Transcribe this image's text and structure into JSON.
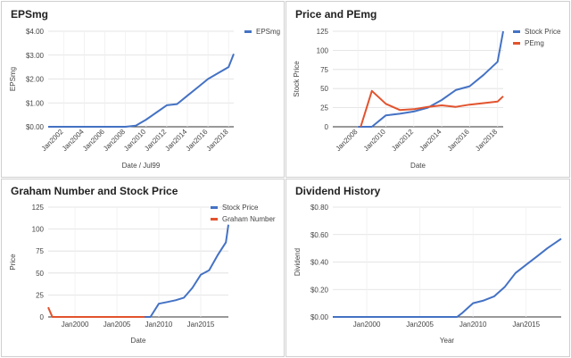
{
  "chart_data": [
    {
      "type": "line",
      "title": "EPSmg",
      "xlabel": "Date / Jul99",
      "ylabel": "EPSmg",
      "x_ticks": [
        "Jan2002",
        "Jan2004",
        "Jan2006",
        "Jan2008",
        "Jan2010",
        "Jan2012",
        "Jan2014",
        "Jan2016",
        "Jan2018"
      ],
      "xlim": [
        2000.5,
        2018.5
      ],
      "ylim": [
        0,
        4
      ],
      "y_ticks": [
        0,
        1,
        2,
        3,
        4
      ],
      "y_tick_labels": [
        "$0.00",
        "$1.00",
        "$2.00",
        "$3.00",
        "$4.00"
      ],
      "x_ticks_rotated": true,
      "legend": "top-right",
      "series": [
        {
          "name": "EPSmg",
          "color": "#4472c4",
          "x": [
            2000.5,
            2002,
            2004,
            2006,
            2008,
            2009,
            2010,
            2011,
            2012,
            2013,
            2014,
            2015,
            2016,
            2017,
            2018,
            2018.5
          ],
          "y": [
            0,
            0,
            0,
            0,
            0,
            0.05,
            0.3,
            0.6,
            0.9,
            0.95,
            1.3,
            1.65,
            2.0,
            2.25,
            2.5,
            3.05
          ]
        }
      ]
    },
    {
      "type": "line",
      "title": "Price and PEmg",
      "xlabel": "Date",
      "ylabel": "Stock Price",
      "x_ticks": [
        "Jan2008",
        "Jan2010",
        "Jan2012",
        "Jan2014",
        "Jan2016",
        "Jan2018"
      ],
      "xlim": [
        2006.2,
        2018.4
      ],
      "ylim": [
        0,
        125
      ],
      "y_ticks": [
        0,
        25,
        50,
        75,
        100,
        125
      ],
      "y_tick_labels": [
        "0",
        "25",
        "50",
        "75",
        "100",
        "125"
      ],
      "x_ticks_rotated": true,
      "legend": "top-right",
      "series": [
        {
          "name": "Stock Price",
          "color": "#4472c4",
          "x": [
            2008,
            2009,
            2010,
            2011,
            2012,
            2013,
            2014,
            2015,
            2016,
            2017,
            2018,
            2018.4
          ],
          "y": [
            0,
            0,
            15,
            17,
            20,
            25,
            35,
            48,
            53,
            68,
            85,
            125
          ]
        },
        {
          "name": "PEmg",
          "color": "#e2532d",
          "x": [
            2008.2,
            2009,
            2010,
            2011,
            2012,
            2013,
            2014,
            2015,
            2016,
            2017,
            2018,
            2018.4
          ],
          "y": [
            0,
            47,
            30,
            22,
            23,
            26,
            28,
            26,
            29,
            31,
            33,
            40
          ]
        }
      ]
    },
    {
      "type": "line",
      "title": "Graham Number and Stock Price",
      "xlabel": "Date",
      "ylabel": "Price",
      "x_ticks": [
        "Jan2000",
        "Jan2005",
        "Jan2010",
        "Jan2015"
      ],
      "xlim": [
        1996.8,
        2018.3
      ],
      "ylim": [
        0,
        125
      ],
      "y_ticks": [
        0,
        25,
        50,
        75,
        100,
        125
      ],
      "y_tick_labels": [
        "0",
        "25",
        "50",
        "75",
        "100",
        "125"
      ],
      "x_ticks_rotated": false,
      "legend": "top-right",
      "series": [
        {
          "name": "Stock Price",
          "color": "#4472c4",
          "x": [
            2007.6,
            2008.5,
            2009,
            2010,
            2011,
            2012,
            2013,
            2014,
            2015,
            2016,
            2017,
            2018,
            2018.3
          ],
          "y": [
            0,
            0,
            0,
            15,
            17,
            19,
            22,
            33,
            48,
            53,
            70,
            85,
            105
          ]
        },
        {
          "name": "Graham Number",
          "color": "#e2532d",
          "x": [
            1996.8,
            1997.3,
            2000,
            2005,
            2008.3
          ],
          "y": [
            11,
            0,
            0,
            0,
            0
          ]
        }
      ]
    },
    {
      "type": "line",
      "title": "Dividend History",
      "xlabel": "Year",
      "ylabel": "Dividend",
      "x_ticks": [
        "Jan2000",
        "Jan2005",
        "Jan2010",
        "Jan2015"
      ],
      "xlim": [
        1996.8,
        2018.3
      ],
      "ylim": [
        0,
        0.8
      ],
      "y_ticks": [
        0,
        0.2,
        0.4,
        0.6,
        0.8
      ],
      "y_tick_labels": [
        "$0.00",
        "$0.20",
        "$0.40",
        "$0.60",
        "$0.80"
      ],
      "x_ticks_rotated": false,
      "legend": "none",
      "series": [
        {
          "name": "Dividend",
          "color": "#4472c4",
          "x": [
            1996.8,
            2000,
            2005,
            2008.5,
            2009,
            2010,
            2011,
            2012,
            2013,
            2014,
            2015,
            2016,
            2017,
            2018.3
          ],
          "y": [
            0,
            0,
            0,
            0,
            0.03,
            0.1,
            0.12,
            0.15,
            0.22,
            0.32,
            0.38,
            0.44,
            0.5,
            0.57
          ]
        }
      ]
    }
  ]
}
